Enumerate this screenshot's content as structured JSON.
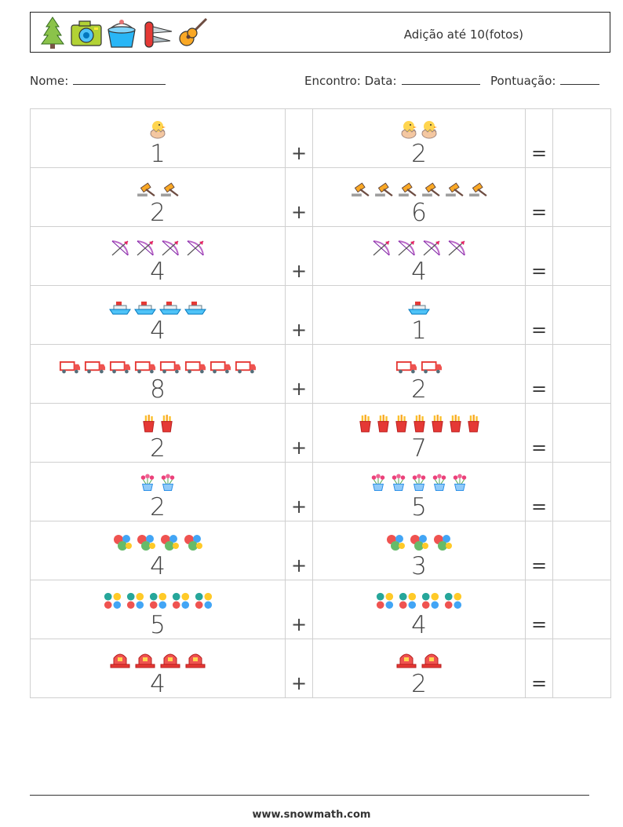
{
  "header": {
    "title": "Adição até 10(fotos)",
    "icons": [
      "tree-icon",
      "camera-icon",
      "bucket-icon",
      "pocket-knife-icon",
      "guitar-icon"
    ]
  },
  "meta": {
    "name_label": "Nome:",
    "meeting_label": "Encontro: Data:",
    "score_label": "Pontuação:"
  },
  "operators": {
    "plus": "+",
    "equals": "="
  },
  "rows": [
    {
      "a": "1",
      "a_icon": "chick-icon",
      "b": "2",
      "b_icon": "chick-icon",
      "a_count": 1,
      "b_count": 2
    },
    {
      "a": "2",
      "a_icon": "gavel-icon",
      "b": "6",
      "b_icon": "gavel-icon",
      "a_count": 2,
      "b_count": 6
    },
    {
      "a": "4",
      "a_icon": "bow-arrow-icon",
      "b": "4",
      "b_icon": "bow-arrow-icon",
      "a_count": 4,
      "b_count": 4
    },
    {
      "a": "4",
      "a_icon": "ship-icon",
      "b": "1",
      "b_icon": "ship-icon",
      "a_count": 4,
      "b_count": 1
    },
    {
      "a": "8",
      "a_icon": "truck-icon",
      "b": "2",
      "b_icon": "truck-icon",
      "a_count": 8,
      "b_count": 2
    },
    {
      "a": "2",
      "a_icon": "fries-icon",
      "b": "7",
      "b_icon": "fries-icon",
      "a_count": 2,
      "b_count": 7
    },
    {
      "a": "2",
      "a_icon": "flower-pot-icon",
      "b": "5",
      "b_icon": "flower-pot-icon",
      "a_count": 2,
      "b_count": 5
    },
    {
      "a": "4",
      "a_icon": "balls-icon",
      "b": "3",
      "b_icon": "balls-icon",
      "a_count": 4,
      "b_count": 3
    },
    {
      "a": "5",
      "a_icon": "lottery-balls-icon",
      "b": "4",
      "b_icon": "lottery-balls-icon",
      "a_count": 5,
      "b_count": 4
    },
    {
      "a": "4",
      "a_icon": "siren-icon",
      "b": "2",
      "b_icon": "siren-icon",
      "a_count": 4,
      "b_count": 2
    }
  ],
  "footer": {
    "url": "www.snowmath.com"
  }
}
